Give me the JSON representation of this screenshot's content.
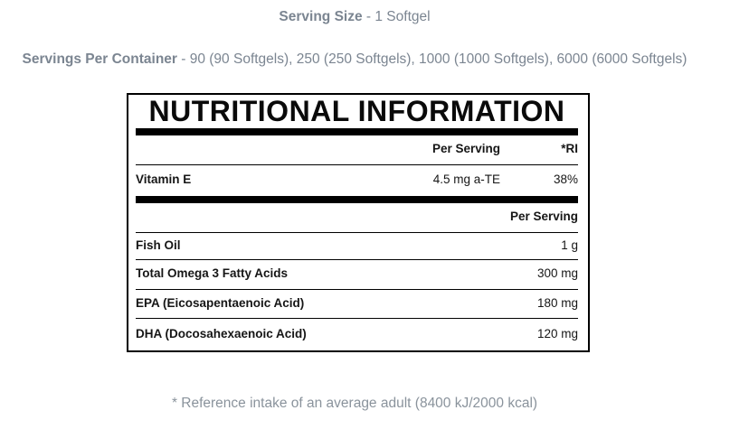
{
  "colors": {
    "text_gray": "#7b8591",
    "footnote_gray": "#8a939c",
    "table_black": "#000000"
  },
  "header": {
    "serving_size_label": "Serving Size",
    "serving_size_rest": " - 1 Softgel",
    "servings_per_container_label": "Servings Per Container",
    "servings_per_container_rest": " - 90 (90 Softgels), 250 (250 Softgels), 1000 (1000 Softgels), 6000 (6000 Softgels)"
  },
  "table": {
    "title": "NUTRITIONAL INFORMATION",
    "section1": {
      "col_per_serving": "Per Serving",
      "col_ri": "*RI",
      "rows": [
        {
          "name": "Vitamin E",
          "per_serving": "4.5 mg a-TE",
          "ri": "38%"
        }
      ]
    },
    "section2": {
      "col_per_serving": "Per Serving",
      "rows": [
        {
          "name": "Fish Oil",
          "value": "1 g"
        },
        {
          "name": "Total Omega 3 Fatty Acids",
          "value": "300 mg"
        },
        {
          "name": "EPA (Eicosapentaenoic Acid)",
          "value": "180 mg"
        },
        {
          "name": "DHA (Docosahexaenoic Acid)",
          "value": "120 mg"
        }
      ]
    }
  },
  "footnote": "* Reference intake of an average adult (8400 kJ/2000 kcal)"
}
